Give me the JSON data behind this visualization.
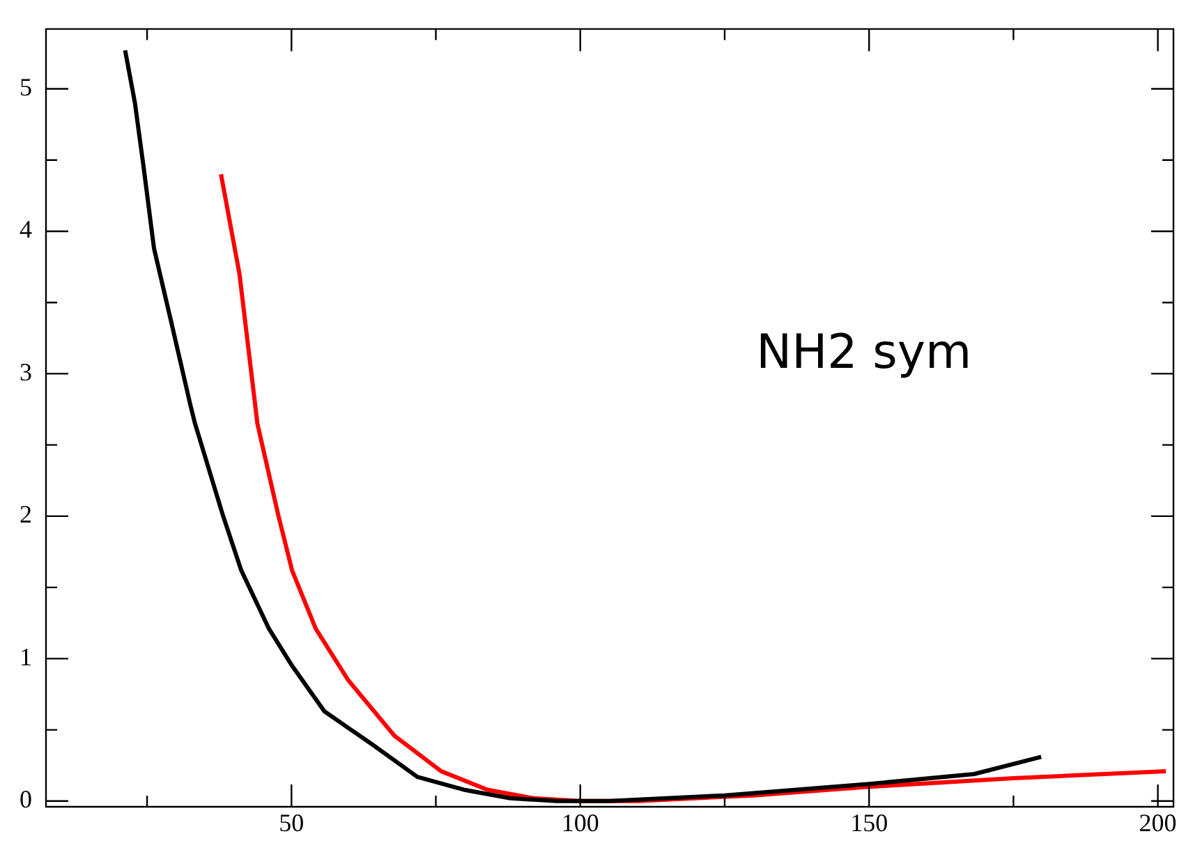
{
  "chart_data": {
    "type": "line",
    "xlim": [
      7.5,
      202.7
    ],
    "ylim": [
      -0.04,
      5.42
    ],
    "xticks": [
      {
        "value": 25,
        "label": null
      },
      50,
      {
        "value": 75,
        "label": null
      },
      100,
      {
        "value": 125,
        "label": null
      },
      150,
      {
        "value": 175,
        "label": null
      },
      200
    ],
    "yticks": [
      0,
      {
        "value": 0.5,
        "label": null
      },
      1,
      {
        "value": 1.5,
        "label": null
      },
      2,
      {
        "value": 2.5,
        "label": null
      },
      3,
      {
        "value": 3.5,
        "label": null
      },
      4,
      {
        "value": 4.5,
        "label": null
      },
      5
    ],
    "marker": "none",
    "line_style": "solid",
    "annotations": [
      "NH2 sym"
    ],
    "series": [
      {
        "color": "#000000",
        "x": [
          21.2,
          22.9,
          24.4,
          26.2,
          29.2,
          32.5,
          33.3,
          38.1,
          41.3,
          46.1,
          50.1,
          55.7,
          63.9,
          71.8,
          79.8,
          87.9,
          95.9,
          105,
          125,
          150,
          168.2,
          179.8
        ],
        "values": [
          5.27,
          4.9,
          4.45,
          3.88,
          3.36,
          2.78,
          2.65,
          2.01,
          1.62,
          1.21,
          0.95,
          0.63,
          0.4,
          0.17,
          0.08,
          0.02,
          0.0,
          0.0,
          0.04,
          0.12,
          0.19,
          0.31
        ]
      },
      {
        "color": "#ff0000",
        "x": [
          37.8,
          41,
          44.1,
          47.7,
          50.1,
          54.2,
          59.8,
          67.8,
          75.9,
          83.9,
          91.9,
          100,
          110,
          130,
          150,
          175,
          201.4
        ],
        "values": [
          4.4,
          3.7,
          2.65,
          2.01,
          1.62,
          1.21,
          0.85,
          0.46,
          0.21,
          0.08,
          0.02,
          0.0,
          0.0,
          0.04,
          0.1,
          0.16,
          0.21
        ]
      }
    ]
  }
}
